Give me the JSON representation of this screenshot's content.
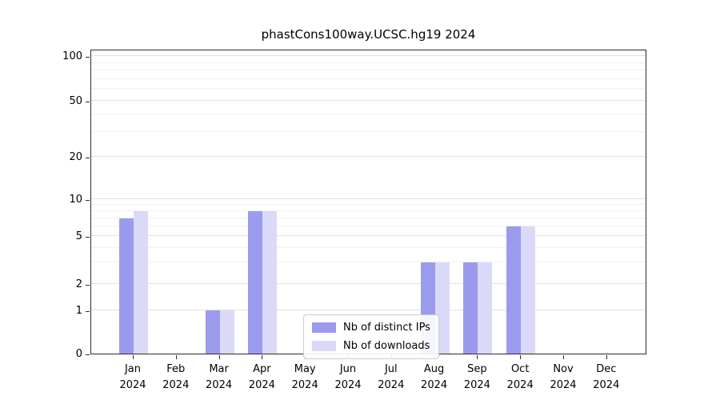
{
  "title": "phastCons100way.UCSC.hg19 2024",
  "chart_data": {
    "type": "bar",
    "title": "phastCons100way.UCSC.hg19 2024",
    "categories": [
      "Jan",
      "Feb",
      "Mar",
      "Apr",
      "May",
      "Jun",
      "Jul",
      "Aug",
      "Sep",
      "Oct",
      "Nov",
      "Dec"
    ],
    "year_label": "2024",
    "series": [
      {
        "name": "Nb of distinct IPs",
        "color": "#9b9bee",
        "values": [
          7,
          0,
          1,
          8,
          0,
          0,
          0,
          3,
          3,
          6,
          0,
          0
        ]
      },
      {
        "name": "Nb of downloads",
        "color": "#dadaf8",
        "values": [
          8,
          0,
          1,
          8,
          0,
          0,
          0,
          3,
          3,
          6,
          0,
          0
        ]
      }
    ],
    "y_axis": {
      "scale": "symlog",
      "ticks": [
        0,
        1,
        2,
        5,
        10,
        20,
        50,
        100
      ],
      "minor_ticks": [
        3,
        4,
        6,
        7,
        8,
        9,
        30,
        40,
        60,
        70,
        80,
        90
      ],
      "ylim": [
        0,
        110
      ]
    },
    "x_axis": {
      "tick_label_line2": "2024"
    },
    "legend": {
      "position": "lower center",
      "entries": [
        "Nb of distinct IPs",
        "Nb of downloads"
      ]
    },
    "grid": true
  }
}
